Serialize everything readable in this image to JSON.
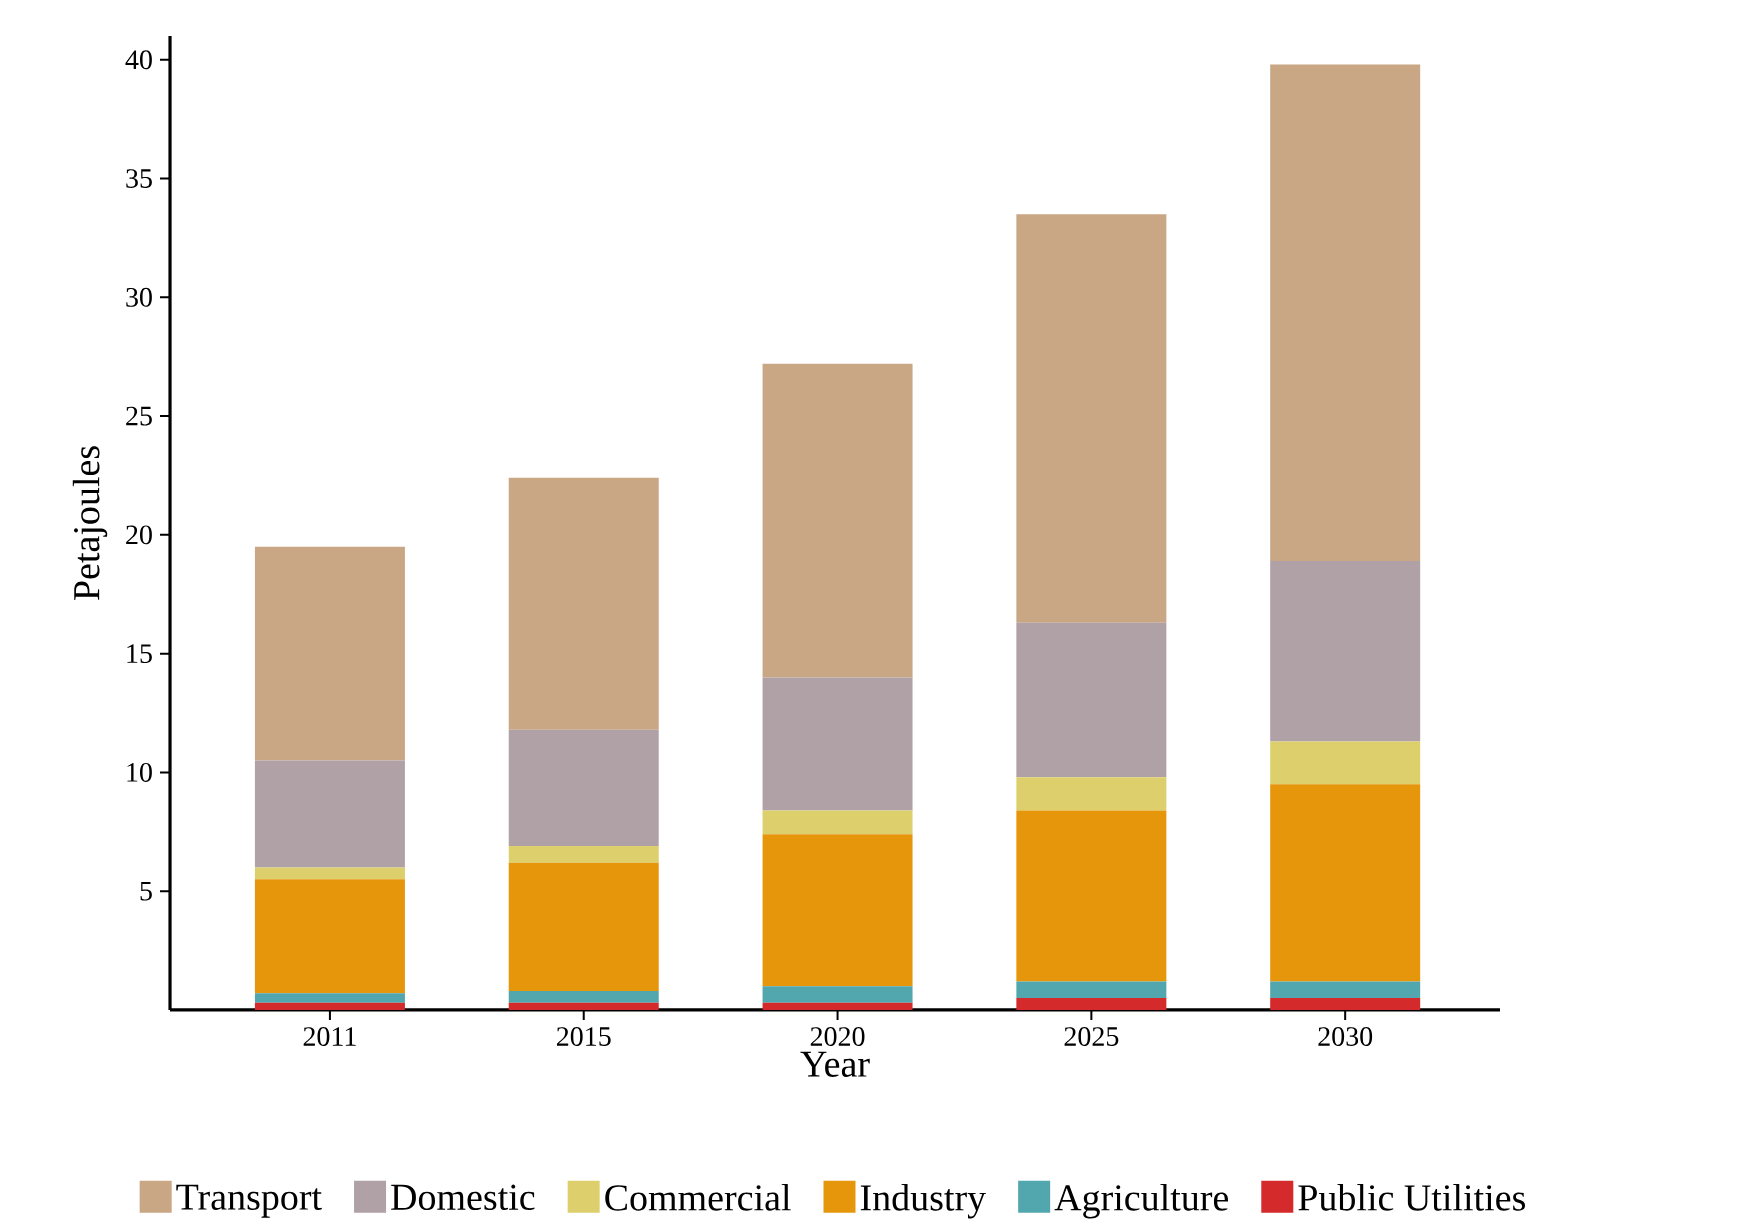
{
  "chart_data": {
    "type": "bar",
    "stacked": true,
    "xlabel": "Year",
    "ylabel": "Petajoules",
    "categories": [
      "2011",
      "2015",
      "2020",
      "2025",
      "2030"
    ],
    "series": [
      {
        "name": "Public Utilities",
        "color": "#d42a2b",
        "values": [
          0.3,
          0.3,
          0.3,
          0.5,
          0.5
        ]
      },
      {
        "name": "Agriculture",
        "color": "#52a6ad",
        "values": [
          0.4,
          0.5,
          0.7,
          0.7,
          0.7
        ]
      },
      {
        "name": "Industry",
        "color": "#e6960b",
        "values": [
          4.8,
          5.4,
          6.4,
          7.2,
          8.3
        ]
      },
      {
        "name": "Commercial",
        "color": "#ddd06c",
        "values": [
          0.5,
          0.7,
          1.0,
          1.4,
          1.8
        ]
      },
      {
        "name": "Domestic",
        "color": "#b0a1a7",
        "values": [
          4.5,
          4.9,
          5.6,
          6.5,
          7.6
        ]
      },
      {
        "name": "Transport",
        "color": "#c9a684",
        "values": [
          9.0,
          10.6,
          13.2,
          17.2,
          20.9
        ]
      }
    ],
    "ylim": [
      0,
      41
    ],
    "yticks": [
      5,
      10,
      15,
      20,
      25,
      30,
      35,
      40
    ],
    "grid": false,
    "legend": "bottom"
  }
}
